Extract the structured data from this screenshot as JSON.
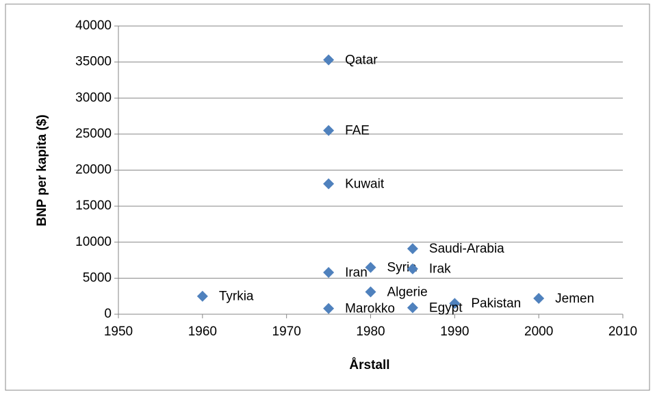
{
  "chart_data": {
    "type": "scatter",
    "x_label": "Årstall",
    "y_label": "BNP per kapita ($)",
    "labels": [
      "Qatar",
      "FAE",
      "Kuwait",
      "Saudi-Arabia",
      "Syria",
      "Irak",
      "Iran",
      "Algerie",
      "Tyrkia",
      "Jemen",
      "Pakistan",
      "Egypt",
      "Marokko"
    ],
    "x": [
      1975,
      1975,
      1975,
      1985,
      1980,
      1985,
      1975,
      1980,
      1960,
      2000,
      1990,
      1985,
      1975
    ],
    "values": [
      35300,
      25500,
      18100,
      9100,
      6500,
      6300,
      5800,
      3100,
      2500,
      2200,
      1500,
      900,
      800
    ],
    "color": "#4f81bd",
    "xlim": [
      1950,
      2010
    ],
    "xticks": [
      1950,
      1960,
      1970,
      1980,
      1990,
      2000,
      2010
    ],
    "ylim": [
      0,
      40000
    ],
    "yticks": [
      0,
      5000,
      10000,
      15000,
      20000,
      25000,
      30000,
      35000,
      40000
    ],
    "grid": true
  }
}
